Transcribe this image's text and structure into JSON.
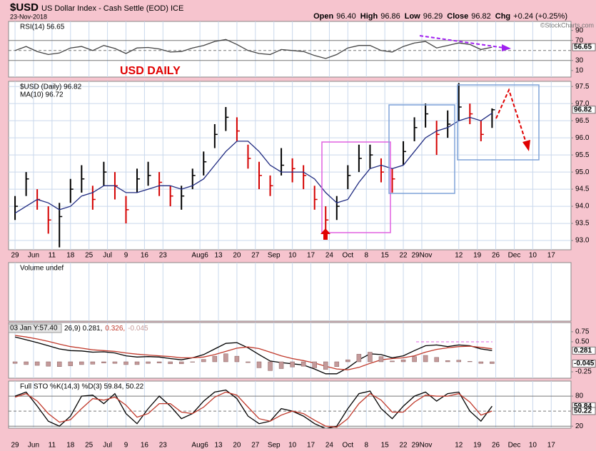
{
  "header": {
    "symbol": "$USD",
    "name": "US Dollar Index - Cash Settle (EOD) ICE",
    "date": "23-Nov-2018",
    "quote": [
      {
        "label": "Open",
        "value": "96.40"
      },
      {
        "label": "High",
        "value": "96.86"
      },
      {
        "label": "Low",
        "value": "96.29"
      },
      {
        "label": "Close",
        "value": "96.82"
      },
      {
        "label": "Chg",
        "value": "+0.24 (+0.25%)"
      }
    ],
    "copyright": "©StockCharts.com"
  },
  "annotation": "USD DAILY",
  "chart_data": {
    "type": "stock",
    "x": [
      -1.0,
      -0.4,
      0.2,
      0.8,
      1.4,
      2.0,
      2.6,
      3.2,
      3.8,
      4.4,
      5.0,
      5.6,
      6.2,
      6.8,
      7.4,
      8.0,
      8.6,
      9.2,
      9.8,
      10.4,
      11.0,
      11.6,
      12.2,
      12.8,
      13.4,
      14.0,
      14.6,
      15.2,
      15.8,
      16.4,
      17.0,
      17.6,
      18.2,
      18.8,
      19.4,
      20.0,
      20.6,
      21.2,
      21.8,
      22.4,
      23.0,
      23.6,
      24.2,
      24.8
    ],
    "xlim": [
      -1.35,
      29.07
    ],
    "xticks": [
      {
        "value": -1,
        "label": "29"
      },
      {
        "value": 0,
        "label": "Jun"
      },
      {
        "value": 1,
        "label": "11"
      },
      {
        "value": 2,
        "label": "18"
      },
      {
        "value": 3,
        "label": "25"
      },
      {
        "value": 4,
        "label": "Jul"
      },
      {
        "value": 5,
        "label": "9"
      },
      {
        "value": 6,
        "label": "16"
      },
      {
        "value": 7,
        "label": "23"
      },
      {
        "value": 9,
        "label": "Aug6"
      },
      {
        "value": 10,
        "label": "13"
      },
      {
        "value": 11,
        "label": "20"
      },
      {
        "value": 12,
        "label": "27"
      },
      {
        "value": 13,
        "label": "Sep"
      },
      {
        "value": 14,
        "label": "10"
      },
      {
        "value": 15,
        "label": "17"
      },
      {
        "value": 16,
        "label": "24"
      },
      {
        "value": 17,
        "label": "Oct"
      },
      {
        "value": 18,
        "label": "8"
      },
      {
        "value": 19,
        "label": "15"
      },
      {
        "value": 20,
        "label": "22"
      },
      {
        "value": 21,
        "label": "29Nov"
      },
      {
        "value": 23,
        "label": "12"
      },
      {
        "value": 24,
        "label": "19"
      },
      {
        "value": 25,
        "label": "26"
      },
      {
        "value": 26,
        "label": "Dec"
      },
      {
        "value": 27,
        "label": "10"
      },
      {
        "value": 28,
        "label": "17"
      }
    ],
    "panels": [
      {
        "legend": [
          "RSI(14) 56.65"
        ],
        "legend_layout": "stacked",
        "ylim": [
          -3,
          108
        ],
        "yticks": [
          90,
          70,
          30,
          10
        ],
        "grid": false,
        "ref_lines": [
          {
            "value": 70,
            "style": "solid"
          },
          {
            "value": 50,
            "style": "dashed"
          },
          {
            "value": 30,
            "style": "solid"
          }
        ],
        "last_value_ticks": [
          {
            "value": 56.65,
            "label": "56.65"
          }
        ],
        "series": [
          {
            "name": "RSI(14)",
            "type": "line",
            "color": "#444444",
            "values": [
              50,
              58,
              48,
              42,
              45,
              55,
              58,
              50,
              60,
              54,
              44,
              55,
              56,
              53,
              47,
              48,
              55,
              60,
              68,
              72,
              62,
              50,
              44,
              42,
              52,
              50,
              48,
              40,
              34,
              42,
              55,
              60,
              60,
              50,
              47,
              58,
              65,
              68,
              55,
              60,
              65,
              62,
              52,
              56.65
            ]
          }
        ]
      },
      {
        "legend": [
          "$USD (Daily) 96.82",
          "MA(10) 96.72"
        ],
        "legend_layout": "stacked",
        "ylim": [
          92.73,
          97.65
        ],
        "grid": true,
        "yticks": [
          {
            "value": 97.5,
            "label": "97.5"
          },
          {
            "value": 97,
            "label": "97.0"
          },
          {
            "value": 96.5,
            "label": "96.5"
          },
          {
            "value": 96,
            "label": "96.0"
          },
          {
            "value": 95.5,
            "label": "95.5"
          },
          {
            "value": 95,
            "label": "95.0"
          },
          {
            "value": 94.5,
            "label": "94.5"
          },
          {
            "value": 94,
            "label": "94.0"
          },
          {
            "value": 93.5,
            "label": "93.5"
          },
          {
            "value": 93,
            "label": "93.0"
          }
        ],
        "last_value_ticks": [
          {
            "value": 96.82,
            "label": "96.82"
          }
        ],
        "series": [
          {
            "name": "$USD (Daily)",
            "type": "ohlc",
            "color": "#000000",
            "down_color": "#d40000",
            "high": [
              94.3,
              95.0,
              94.5,
              94.0,
              94.1,
              94.8,
              95.2,
              94.6,
              95.3,
              95.0,
              94.3,
              95.1,
              95.3,
              95.0,
              94.6,
              94.6,
              95.1,
              95.6,
              96.4,
              96.9,
              96.6,
              95.8,
              95.3,
              94.9,
              95.7,
              95.4,
              95.2,
              94.6,
              94.0,
              94.3,
              95.2,
              95.8,
              95.8,
              95.4,
              95.1,
              95.9,
              96.6,
              97.0,
              96.5,
              96.8,
              97.6,
              97.0,
              96.5,
              96.86
            ],
            "low": [
              93.6,
              94.3,
              93.9,
              93.2,
              92.8,
              94.1,
              94.4,
              93.9,
              94.6,
              94.2,
              93.5,
              94.4,
              94.6,
              94.3,
              94.0,
              93.9,
              94.5,
              94.9,
              95.7,
              96.2,
              95.9,
              95.1,
              94.5,
              94.3,
              94.9,
              94.7,
              94.5,
              93.9,
              93.3,
              93.6,
              94.5,
              95.0,
              95.1,
              94.7,
              94.4,
              95.2,
              95.9,
              96.3,
              95.5,
              96.0,
              96.5,
              96.4,
              95.9,
              96.29
            ],
            "close": [
              94.0,
              94.8,
              94.2,
              93.6,
              93.7,
              94.5,
              94.8,
              94.2,
              95.0,
              94.6,
              93.9,
              94.8,
              94.9,
              94.7,
              94.3,
              94.3,
              94.9,
              95.3,
              96.1,
              96.6,
              96.2,
              95.4,
              94.9,
              94.6,
              95.2,
              95.1,
              94.9,
              94.2,
              93.6,
              94.0,
              94.9,
              95.4,
              95.5,
              95.0,
              94.8,
              95.6,
              96.3,
              96.7,
              96.1,
              96.4,
              96.9,
              96.7,
              96.1,
              96.82
            ]
          },
          {
            "name": "MA(10)",
            "type": "line",
            "color": "#1f2a80",
            "values": [
              93.8,
              94.0,
              94.2,
              94.1,
              93.9,
              94.0,
              94.3,
              94.4,
              94.6,
              94.6,
              94.4,
              94.4,
              94.5,
              94.6,
              94.6,
              94.5,
              94.6,
              94.8,
              95.2,
              95.6,
              95.9,
              95.9,
              95.6,
              95.2,
              95.0,
              95.0,
              95.0,
              94.8,
              94.4,
              94.1,
              94.2,
              94.7,
              95.1,
              95.2,
              95.1,
              95.2,
              95.6,
              96.0,
              96.2,
              96.3,
              96.5,
              96.6,
              96.5,
              96.72
            ]
          }
        ]
      },
      {
        "legend": [
          "Volume undef"
        ],
        "legend_layout": "stacked",
        "series": []
      },
      {
        "tooltip": "03 Jan Y:57.40",
        "legend": [
          "26,9) 0.281,",
          "0.326,",
          "-0.045"
        ],
        "legend_layout": "inline",
        "ylim": [
          -0.41,
          0.98
        ],
        "grid": false,
        "yticks": [
          {
            "value": 0.75,
            "label": "0.75"
          },
          {
            "value": 0.5,
            "label": "0.50"
          },
          {
            "value": -0.25,
            "label": "-0.25"
          }
        ],
        "last_value_ticks": [
          {
            "value": 0.281,
            "label": "0.281"
          },
          {
            "value": -0.045,
            "label": "-0.045"
          }
        ],
        "series": [
          {
            "name": "MACD",
            "type": "line",
            "color": "#000000",
            "values": [
              0.62,
              0.55,
              0.48,
              0.4,
              0.32,
              0.28,
              0.27,
              0.24,
              0.25,
              0.22,
              0.15,
              0.12,
              0.13,
              0.12,
              0.08,
              0.05,
              0.1,
              0.18,
              0.32,
              0.46,
              0.48,
              0.35,
              0.18,
              0.02,
              -0.02,
              -0.05,
              -0.08,
              -0.18,
              -0.3,
              -0.3,
              -0.15,
              0.05,
              0.2,
              0.18,
              0.1,
              0.15,
              0.28,
              0.4,
              0.42,
              0.38,
              0.42,
              0.4,
              0.32,
              0.281
            ]
          },
          {
            "name": "Signal",
            "type": "line",
            "color": "#c0392b",
            "values": [
              0.66,
              0.62,
              0.57,
              0.51,
              0.44,
              0.38,
              0.34,
              0.3,
              0.28,
              0.26,
              0.22,
              0.19,
              0.17,
              0.15,
              0.13,
              0.1,
              0.1,
              0.12,
              0.18,
              0.26,
              0.34,
              0.37,
              0.33,
              0.24,
              0.15,
              0.08,
              0.03,
              -0.03,
              -0.11,
              -0.18,
              -0.2,
              -0.14,
              -0.04,
              0.05,
              0.08,
              0.1,
              0.15,
              0.24,
              0.31,
              0.35,
              0.38,
              0.39,
              0.36,
              0.326
            ]
          },
          {
            "name": "Histogram",
            "type": "histogram",
            "color": "#c49a9a",
            "values": [
              -0.04,
              -0.07,
              -0.09,
              -0.11,
              -0.12,
              -0.1,
              -0.07,
              -0.06,
              -0.03,
              -0.04,
              -0.07,
              -0.07,
              -0.04,
              -0.03,
              -0.05,
              -0.05,
              0.0,
              0.06,
              0.14,
              0.2,
              0.14,
              -0.02,
              -0.15,
              -0.22,
              -0.17,
              -0.13,
              -0.11,
              -0.15,
              -0.19,
              -0.12,
              0.05,
              0.19,
              0.24,
              0.13,
              0.02,
              0.05,
              0.13,
              0.16,
              0.11,
              0.03,
              0.04,
              0.01,
              -0.04,
              -0.045
            ]
          }
        ]
      },
      {
        "legend": [
          "Full STO %K(14,3) %D(3) 59.84, 50.22"
        ],
        "legend_layout": "stacked",
        "ylim": [
          16,
          110
        ],
        "yticks": [
          80,
          20
        ],
        "grid": false,
        "ref_lines": [
          {
            "value": 80,
            "style": "solid"
          },
          {
            "value": 50,
            "style": "dashed"
          },
          {
            "value": 20,
            "style": "solid"
          }
        ],
        "last_value_ticks": [
          {
            "value": 59.84,
            "label": "59.84"
          },
          {
            "value": 50.22,
            "label": "50.22"
          }
        ],
        "series": [
          {
            "name": "%K",
            "type": "line",
            "color": "#000000",
            "values": [
              80,
              88,
              60,
              30,
              20,
              40,
              80,
              82,
              65,
              85,
              45,
              25,
              55,
              80,
              60,
              35,
              45,
              70,
              88,
              92,
              75,
              40,
              25,
              30,
              55,
              50,
              40,
              25,
              15,
              20,
              55,
              85,
              90,
              55,
              35,
              60,
              80,
              88,
              70,
              85,
              88,
              50,
              30,
              59.84
            ]
          },
          {
            "name": "%D",
            "type": "line",
            "color": "#c0392b",
            "values": [
              78,
              85,
              70,
              45,
              28,
              33,
              55,
              75,
              72,
              78,
              62,
              38,
              45,
              65,
              65,
              48,
              45,
              58,
              78,
              88,
              82,
              58,
              35,
              30,
              42,
              50,
              45,
              32,
              20,
              18,
              35,
              65,
              85,
              72,
              48,
              48,
              68,
              82,
              80,
              80,
              85,
              68,
              42,
              50.22
            ]
          }
        ]
      }
    ]
  }
}
